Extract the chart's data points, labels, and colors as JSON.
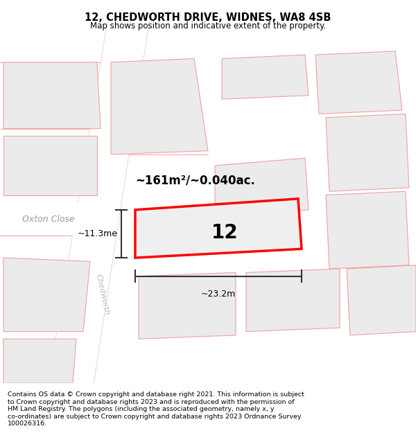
{
  "title": "12, CHEDWORTH DRIVE, WIDNES, WA8 4SB",
  "subtitle": "Map shows position and indicative extent of the property.",
  "footer_line1": "Contains OS data © Crown copyright and database right 2021. This information is subject",
  "footer_line2": "to Crown copyright and database rights 2023 and is reproduced with the permission of",
  "footer_line3": "HM Land Registry. The polygons (including the associated geometry, namely x, y",
  "footer_line4": "co-ordinates) are subject to Crown copyright and database rights 2023 Ordnance Survey",
  "footer_line5": "100026316.",
  "area_text": "~161m²/~0.040ac.",
  "plot_number": "12",
  "dim_width": "~23.2m",
  "dim_height": "~11.3me",
  "street_label_oxton": "Oxton Close",
  "street_label_chedworth": "Chedworth",
  "bg_color": "#ffffff",
  "map_bg": "#f8f7f7",
  "plot_fill": "#f0efef",
  "plot_edge_color": "#ff0000",
  "neighbor_fill": "#ebebeb",
  "neighbor_edge": "#f0a0a0",
  "road_color": "#ffffff",
  "dim_line_color": "#333333"
}
